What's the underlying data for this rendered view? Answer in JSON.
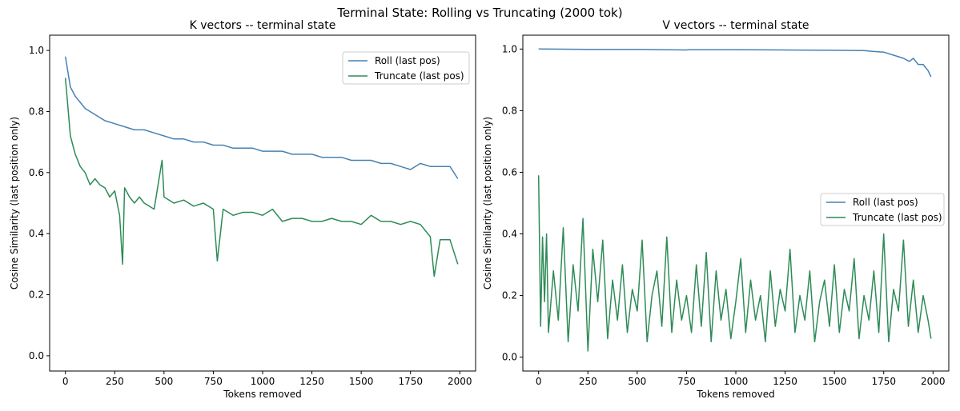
{
  "figure": {
    "suptitle": "Terminal State: Rolling vs Truncating (2000 tok)"
  },
  "colors": {
    "roll": "#4682b4",
    "truncate": "#2e8b57"
  },
  "chart_data": [
    {
      "type": "line",
      "title": "K vectors -- terminal state",
      "xlabel": "Tokens removed",
      "ylabel": "Cosine Similarity (last position only)",
      "xlim": [
        -80,
        2080
      ],
      "ylim": [
        -0.05,
        1.05
      ],
      "xticks": [
        0,
        250,
        500,
        750,
        1000,
        1250,
        1500,
        1750,
        2000
      ],
      "xtick_labels": [
        "0",
        "250",
        "500",
        "750",
        "1000",
        "1250",
        "1500",
        "1750",
        "2000"
      ],
      "yticks": [
        0.0,
        0.2,
        0.4,
        0.6,
        0.8,
        1.0
      ],
      "ytick_labels": [
        "0.0",
        "0.2",
        "0.4",
        "0.6",
        "0.8",
        "1.0"
      ],
      "legend_position": "top-right",
      "grid": false,
      "series": [
        {
          "name": "Roll (last pos)",
          "color": "#4682b4",
          "x": [
            0,
            25,
            50,
            75,
            100,
            125,
            150,
            175,
            200,
            250,
            300,
            350,
            400,
            450,
            500,
            550,
            600,
            650,
            700,
            750,
            800,
            850,
            900,
            950,
            1000,
            1050,
            1100,
            1150,
            1200,
            1250,
            1300,
            1350,
            1400,
            1450,
            1500,
            1550,
            1600,
            1650,
            1700,
            1750,
            1800,
            1850,
            1900,
            1950,
            1990
          ],
          "y": [
            0.98,
            0.88,
            0.85,
            0.83,
            0.81,
            0.8,
            0.79,
            0.78,
            0.77,
            0.76,
            0.75,
            0.74,
            0.74,
            0.73,
            0.72,
            0.71,
            0.71,
            0.7,
            0.7,
            0.69,
            0.69,
            0.68,
            0.68,
            0.68,
            0.67,
            0.67,
            0.67,
            0.66,
            0.66,
            0.66,
            0.65,
            0.65,
            0.65,
            0.64,
            0.64,
            0.64,
            0.63,
            0.63,
            0.62,
            0.61,
            0.63,
            0.62,
            0.62,
            0.62,
            0.58
          ]
        },
        {
          "name": "Truncate (last pos)",
          "color": "#2e8b57",
          "x": [
            0,
            25,
            50,
            75,
            100,
            125,
            150,
            175,
            200,
            225,
            250,
            275,
            290,
            300,
            325,
            350,
            375,
            400,
            450,
            490,
            500,
            550,
            600,
            650,
            700,
            750,
            770,
            800,
            850,
            900,
            950,
            1000,
            1050,
            1100,
            1150,
            1200,
            1250,
            1300,
            1350,
            1400,
            1450,
            1500,
            1550,
            1600,
            1650,
            1700,
            1750,
            1800,
            1850,
            1870,
            1900,
            1950,
            1990
          ],
          "y": [
            0.91,
            0.72,
            0.66,
            0.62,
            0.6,
            0.56,
            0.58,
            0.56,
            0.55,
            0.52,
            0.54,
            0.46,
            0.3,
            0.55,
            0.52,
            0.5,
            0.52,
            0.5,
            0.48,
            0.64,
            0.52,
            0.5,
            0.51,
            0.49,
            0.5,
            0.48,
            0.31,
            0.48,
            0.46,
            0.47,
            0.47,
            0.46,
            0.48,
            0.44,
            0.45,
            0.45,
            0.44,
            0.44,
            0.45,
            0.44,
            0.44,
            0.43,
            0.46,
            0.44,
            0.44,
            0.43,
            0.44,
            0.43,
            0.39,
            0.26,
            0.38,
            0.38,
            0.3
          ]
        }
      ]
    },
    {
      "type": "line",
      "title": "V vectors -- terminal state",
      "xlabel": "Tokens removed",
      "ylabel": "Cosine Similarity (last position only)",
      "xlim": [
        -80,
        2080
      ],
      "ylim": [
        -0.045,
        1.045
      ],
      "xticks": [
        0,
        250,
        500,
        750,
        1000,
        1250,
        1500,
        1750,
        2000
      ],
      "xtick_labels": [
        "0",
        "250",
        "500",
        "750",
        "1000",
        "1250",
        "1500",
        "1750",
        "2000"
      ],
      "yticks": [
        0.0,
        0.2,
        0.4,
        0.6,
        0.8,
        1.0
      ],
      "ytick_labels": [
        "0.0",
        "0.2",
        "0.4",
        "0.6",
        "0.8",
        "1.0"
      ],
      "legend_position": "center-right",
      "grid": false,
      "series": [
        {
          "name": "Roll (last pos)",
          "color": "#4682b4",
          "x": [
            0,
            250,
            500,
            750,
            760,
            1000,
            1250,
            1500,
            1650,
            1700,
            1750,
            1800,
            1850,
            1880,
            1900,
            1925,
            1950,
            1975,
            1990
          ],
          "y": [
            1.0,
            0.999,
            0.999,
            0.997,
            0.998,
            0.998,
            0.997,
            0.996,
            0.995,
            0.992,
            0.99,
            0.98,
            0.97,
            0.96,
            0.97,
            0.95,
            0.95,
            0.93,
            0.91
          ]
        },
        {
          "name": "Truncate (last pos)",
          "color": "#2e8b57",
          "x": [
            0,
            10,
            20,
            30,
            40,
            50,
            75,
            100,
            125,
            150,
            175,
            200,
            225,
            250,
            275,
            300,
            325,
            350,
            375,
            400,
            425,
            450,
            475,
            500,
            525,
            550,
            575,
            600,
            625,
            650,
            675,
            700,
            725,
            750,
            775,
            800,
            825,
            850,
            875,
            900,
            925,
            950,
            975,
            1000,
            1025,
            1050,
            1075,
            1100,
            1125,
            1150,
            1175,
            1200,
            1225,
            1250,
            1275,
            1300,
            1325,
            1350,
            1375,
            1400,
            1425,
            1450,
            1475,
            1500,
            1525,
            1550,
            1575,
            1600,
            1625,
            1650,
            1675,
            1700,
            1725,
            1750,
            1775,
            1800,
            1825,
            1850,
            1875,
            1900,
            1925,
            1950,
            1975,
            1990
          ],
          "y": [
            0.59,
            0.1,
            0.39,
            0.18,
            0.4,
            0.08,
            0.28,
            0.12,
            0.42,
            0.05,
            0.3,
            0.15,
            0.45,
            0.02,
            0.35,
            0.18,
            0.38,
            0.06,
            0.25,
            0.12,
            0.3,
            0.08,
            0.22,
            0.15,
            0.38,
            0.05,
            0.2,
            0.28,
            0.1,
            0.39,
            0.08,
            0.25,
            0.12,
            0.2,
            0.08,
            0.3,
            0.1,
            0.34,
            0.05,
            0.28,
            0.12,
            0.22,
            0.06,
            0.18,
            0.32,
            0.08,
            0.25,
            0.12,
            0.2,
            0.05,
            0.28,
            0.1,
            0.22,
            0.15,
            0.35,
            0.08,
            0.2,
            0.12,
            0.28,
            0.05,
            0.18,
            0.25,
            0.1,
            0.3,
            0.08,
            0.22,
            0.15,
            0.32,
            0.06,
            0.2,
            0.12,
            0.28,
            0.08,
            0.4,
            0.05,
            0.22,
            0.15,
            0.38,
            0.1,
            0.25,
            0.08,
            0.2,
            0.12,
            0.06
          ]
        }
      ]
    }
  ]
}
